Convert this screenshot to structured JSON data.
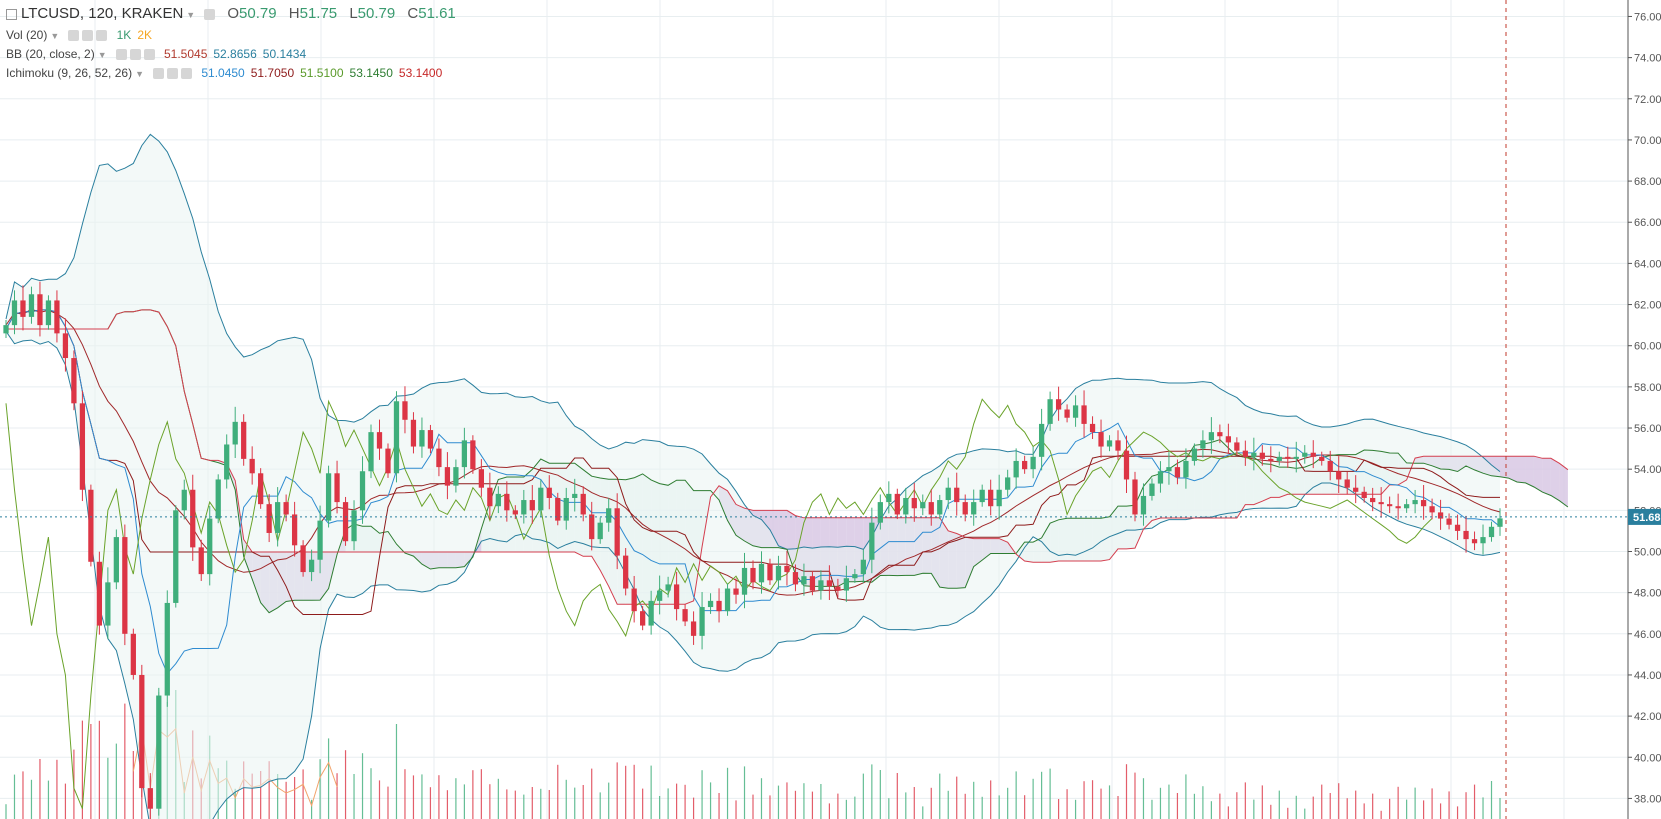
{
  "header": {
    "symbol": "LTCUSD, 120, KRAKEN",
    "open_label": "O",
    "open": "50.79",
    "high_label": "H",
    "high": "51.75",
    "low_label": "L",
    "low": "50.79",
    "close_label": "C",
    "close": "51.61"
  },
  "indicators": {
    "vol": {
      "label": "Vol (20)",
      "v1": "1K",
      "v2": "2K",
      "c1": "#3a9b70",
      "c2": "#f5a623"
    },
    "bb": {
      "label": "BB (20, close, 2)",
      "values": [
        "51.5045",
        "52.8656",
        "50.1434"
      ],
      "colors": [
        "#c0392b",
        "#2a7f9e",
        "#2a7f9e"
      ]
    },
    "ichimoku": {
      "label": "Ichimoku (9, 26, 52, 26)",
      "values": [
        "51.0450",
        "51.7050",
        "51.5100",
        "53.1450",
        "53.1400"
      ],
      "colors": [
        "#2e8bd0",
        "#8e1b1b",
        "#5a9a2a",
        "#2e7d32",
        "#c62828"
      ]
    }
  },
  "price_axis": {
    "ticks": [
      "76.00",
      "74.00",
      "72.00",
      "70.00",
      "68.00",
      "66.00",
      "64.00",
      "62.00",
      "60.00",
      "58.00",
      "56.00",
      "54.00",
      "52.00",
      "50.00",
      "48.00",
      "46.00",
      "44.00",
      "42.00",
      "40.00",
      "38.00"
    ],
    "last_price": "51.68"
  },
  "chart_data": {
    "type": "candlestick",
    "ylim": [
      37,
      76.8
    ],
    "grid": true,
    "colors": {
      "up": "#3fae7b",
      "down": "#dc3545",
      "kumo_bear": "#d8c8e4",
      "kumo_bull": "#e6f1ef",
      "bb_band": "#e9f4f2",
      "bb_line": "#2a7f9e",
      "tenkan": "#2e8bd0",
      "kijun": "#8e1b1b",
      "chikou": "#6aa32a",
      "span_a": "#2e7d32",
      "span_b": "#d43f4f",
      "last_price": "#2a7f9e"
    },
    "close": [
      61.0,
      62.2,
      61.4,
      62.5,
      61.0,
      62.2,
      60.6,
      59.4,
      57.2,
      53.0,
      49.5,
      46.4,
      48.5,
      50.7,
      46.0,
      44.0,
      38.5,
      37.5,
      43.0,
      47.5,
      52.0,
      53.0,
      50.2,
      48.9,
      51.6,
      53.5,
      55.2,
      56.3,
      54.5,
      53.8,
      52.3,
      50.9,
      52.4,
      51.8,
      50.3,
      49.0,
      49.6,
      51.5,
      53.8,
      52.4,
      50.5,
      52.0,
      53.9,
      55.8,
      55.0,
      53.8,
      57.3,
      56.4,
      55.1,
      55.9,
      55.0,
      54.1,
      53.2,
      54.1,
      55.4,
      54.0,
      53.1,
      52.2,
      52.8,
      52.0,
      51.8,
      52.5,
      52.0,
      53.1,
      52.6,
      51.5,
      52.6,
      52.8,
      51.8,
      50.6,
      51.4,
      52.1,
      49.8,
      48.2,
      47.1,
      46.4,
      47.6,
      48.1,
      48.4,
      47.2,
      46.6,
      45.9,
      47.3,
      47.6,
      47.1,
      48.2,
      47.9,
      49.2,
      48.5,
      49.4,
      48.6,
      49.3,
      49.0,
      48.4,
      48.8,
      48.1,
      48.6,
      48.3,
      48.1,
      48.7,
      48.9,
      49.6,
      51.4,
      52.4,
      52.8,
      51.8,
      52.6,
      52.1,
      52.4,
      51.8,
      52.5,
      53.1,
      52.4,
      51.8,
      52.4,
      53.0,
      52.2,
      53.0,
      53.6,
      54.4,
      54.0,
      54.6,
      56.2,
      57.4,
      56.9,
      56.5,
      57.1,
      56.2,
      55.8,
      55.1,
      55.4,
      54.9,
      53.5,
      51.8,
      52.7,
      53.3,
      53.9,
      54.1,
      53.6,
      54.4,
      55.0,
      55.4,
      55.8,
      55.6,
      55.3,
      54.9,
      54.6,
      54.8,
      54.5,
      54.4,
      54.6,
      54.5,
      54.6,
      54.8,
      54.6,
      54.4,
      53.9,
      53.5,
      53.1,
      52.9,
      52.6,
      52.4,
      52.3,
      52.2,
      52.1,
      52.3,
      52.5,
      52.2,
      51.9,
      51.6,
      51.3,
      51.0,
      50.6,
      50.4,
      50.7,
      51.2,
      51.61
    ]
  }
}
